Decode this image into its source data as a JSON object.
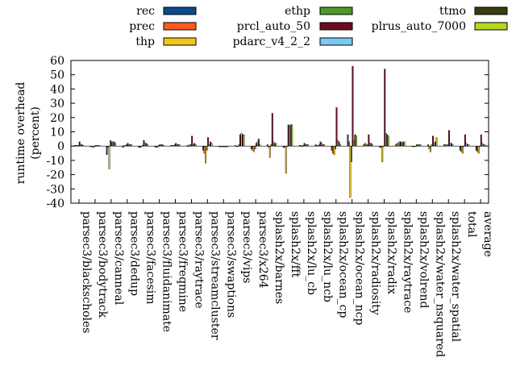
{
  "chart_data": {
    "type": "bar",
    "title": "",
    "xlabel": "",
    "ylabel": "runtime overhead\n(percent)",
    "ylabel_lines": [
      "runtime overhead",
      "(percent)"
    ],
    "ylim": [
      -40,
      60
    ],
    "yticks": [
      -40,
      -30,
      -20,
      -10,
      0,
      10,
      20,
      30,
      40,
      50,
      60
    ],
    "legend_position": "top",
    "categories": [
      "parsec3/blackscholes",
      "parsec3/bodytrack",
      "parsec3/canneal",
      "parsec3/dedup",
      "parsec3/facesim",
      "parsec3/fluidanimate",
      "parsec3/freqmine",
      "parsec3/raytrace",
      "parsec3/streamcluster",
      "parsec3/swaptions",
      "parsec3/vips",
      "parsec3/x264",
      "splash2x/barnes",
      "splash2x/fft",
      "splash2x/lu_cb",
      "splash2x/lu_ncb",
      "splash2x/ocean_cp",
      "splash2x/ocean_ncp",
      "splash2x/radiosity",
      "splash2x/radix",
      "splash2x/raytrace",
      "splash2x/volrend",
      "splash2x/water_nsquared",
      "splash2x/water_spatial",
      "total",
      "average"
    ],
    "series": [
      {
        "name": "rec",
        "color": "#0a4a8c",
        "values": [
          0.5,
          -0.5,
          -6,
          -1,
          -1,
          -0.5,
          0.5,
          0.5,
          -3,
          -0.5,
          0.5,
          -2,
          1,
          -1,
          0.5,
          1,
          -3,
          8,
          1,
          -1,
          1,
          0,
          1,
          1,
          -3,
          -3
        ]
      },
      {
        "name": "prec",
        "color": "#ff5a1e",
        "values": [
          0.5,
          -0.5,
          -1,
          0.5,
          -1,
          -1,
          0.5,
          0,
          -5,
          -0.5,
          0,
          -3,
          -1,
          -1,
          0.5,
          0.5,
          -5,
          3,
          2,
          -1,
          2,
          -0.5,
          -2,
          1,
          -4,
          -4
        ]
      },
      {
        "name": "thp",
        "color": "#f2c618",
        "values": [
          0.5,
          -1,
          -16,
          0.5,
          -0.5,
          -1,
          0.5,
          1,
          -12,
          -0.5,
          0,
          -4,
          -8,
          -19,
          -0.5,
          0.5,
          -6,
          -36,
          1,
          -11,
          2,
          -0.5,
          -4,
          1,
          -5,
          -5
        ]
      },
      {
        "name": "ethp",
        "color": "#4c9a2a",
        "values": [
          0.5,
          -0.5,
          4,
          1,
          0.5,
          0.5,
          1,
          1,
          -3,
          -0.5,
          1,
          -2,
          1,
          0,
          0.5,
          1,
          -2,
          -11,
          1,
          0,
          3,
          0,
          1,
          1,
          0,
          0
        ]
      },
      {
        "name": "prcl_auto_50",
        "color": "#6e0a1e",
        "values": [
          3,
          0.5,
          3,
          2,
          4,
          1,
          2,
          7,
          6,
          -0.5,
          8,
          2,
          23,
          15,
          2,
          3,
          27,
          56,
          8,
          54,
          3,
          1,
          7,
          11,
          8,
          8
        ]
      },
      {
        "name": "pdarc_v4_2_2",
        "color": "#7cc8f5",
        "values": [
          1,
          0.5,
          3,
          1,
          2,
          1,
          1,
          1,
          1,
          -0.5,
          9,
          3,
          3,
          14,
          1,
          2,
          4,
          4,
          2,
          9,
          2,
          1,
          2,
          2,
          2,
          2
        ]
      },
      {
        "name": "ttmo",
        "color": "#3a3a10",
        "values": [
          1,
          0.5,
          3,
          1,
          2,
          1,
          1,
          2,
          3,
          -0.5,
          8,
          5,
          2,
          15,
          1,
          1,
          3,
          8,
          2,
          8,
          3,
          1,
          3,
          2,
          1,
          1
        ]
      },
      {
        "name": "plrus_auto_7000",
        "color": "#b3d81c",
        "values": [
          0.5,
          0.5,
          2,
          1,
          1,
          0.5,
          1,
          1,
          2,
          -0.5,
          8,
          1,
          2,
          15,
          1,
          1,
          1,
          7,
          1,
          7,
          3,
          1,
          6,
          1,
          1,
          1
        ]
      }
    ]
  }
}
